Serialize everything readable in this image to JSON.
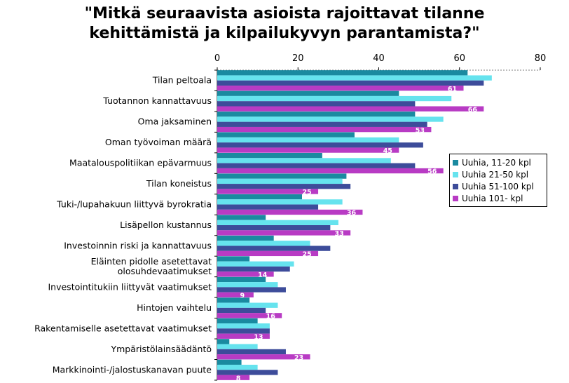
{
  "chart_data": {
    "type": "bar",
    "orientation": "horizontal",
    "title_lines": [
      "\"Mitkä seuraavista asioista rajoittavat tilanne",
      "kehittämistä ja kilpailukyvyn parantamista?\""
    ],
    "categories": [
      [
        "Tilan peltoala"
      ],
      [
        "Tuotannon kannattavuus"
      ],
      [
        "Oma jaksaminen"
      ],
      [
        "Oman työvoiman määrä"
      ],
      [
        "Maatalouspolitiikan epävarmuus"
      ],
      [
        "Tilan koneistus"
      ],
      [
        "Tuki-/lupahakuun liittyvä  byrokratia"
      ],
      [
        "Lisäpellon kustannus"
      ],
      [
        "Investoinnin riski ja kannattavuus"
      ],
      [
        "Eläinten pidolle asetettavat",
        "olosuhdevaatimukset"
      ],
      [
        "Investointitukiin liittyvät vaatimukset"
      ],
      [
        "Hintojen vaihtelu"
      ],
      [
        "Rakentamiselle asetettavat vaatimukset"
      ],
      [
        "Ympäristölainsäädäntö"
      ],
      [
        "Markkinointi-/jalostuskanavan puute"
      ]
    ],
    "series": [
      {
        "name": "Uuhia, 11-20 kpl",
        "color": "#1a8aa0",
        "values": [
          62,
          45,
          49,
          34,
          26,
          32,
          21,
          12,
          14,
          8,
          12,
          8,
          10,
          3,
          6
        ]
      },
      {
        "name": "Uuhia 21-50 kpl",
        "color": "#66e3ee",
        "values": [
          68,
          58,
          56,
          45,
          43,
          31,
          31,
          30,
          23,
          19,
          15,
          15,
          13,
          10,
          10
        ]
      },
      {
        "name": "Uuhia 51-100 kpl",
        "color": "#3d4c9a",
        "values": [
          66,
          49,
          52,
          51,
          49,
          33,
          25,
          28,
          28,
          18,
          17,
          12,
          13,
          17,
          15
        ]
      },
      {
        "name": "Uuhia 101- kpl",
        "color": "#b83bc4",
        "values": [
          61,
          66,
          53,
          45,
          56,
          25,
          36,
          33,
          25,
          14,
          9,
          16,
          13,
          23,
          8
        ]
      }
    ],
    "labeled_series": "Uuhia 101- kpl",
    "xlim": [
      0,
      80
    ],
    "x_ticks": [
      "0",
      "20",
      "40",
      "60",
      "80"
    ],
    "legend_position": "right"
  }
}
